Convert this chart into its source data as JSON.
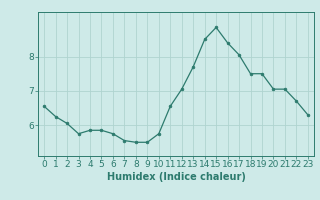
{
  "x": [
    0,
    1,
    2,
    3,
    4,
    5,
    6,
    7,
    8,
    9,
    10,
    11,
    12,
    13,
    14,
    15,
    16,
    17,
    18,
    19,
    20,
    21,
    22,
    23
  ],
  "y": [
    6.55,
    6.25,
    6.05,
    5.75,
    5.85,
    5.85,
    5.75,
    5.55,
    5.5,
    5.5,
    5.75,
    6.55,
    7.05,
    7.7,
    8.5,
    8.85,
    8.4,
    8.05,
    7.5,
    7.5,
    7.05,
    7.05,
    6.7,
    6.3
  ],
  "xlabel": "Humidex (Indice chaleur)",
  "xticks": [
    0,
    1,
    2,
    3,
    4,
    5,
    6,
    7,
    8,
    9,
    10,
    11,
    12,
    13,
    14,
    15,
    16,
    17,
    18,
    19,
    20,
    21,
    22,
    23
  ],
  "yticks": [
    6,
    7,
    8
  ],
  "ylim": [
    5.1,
    9.3
  ],
  "xlim": [
    -0.5,
    23.5
  ],
  "bg_color": "#ceeae8",
  "grid_color": "#afd4d0",
  "line_color": "#2d7b6e",
  "marker_color": "#2d7b6e",
  "xlabel_fontsize": 7,
  "tick_fontsize": 6.5
}
